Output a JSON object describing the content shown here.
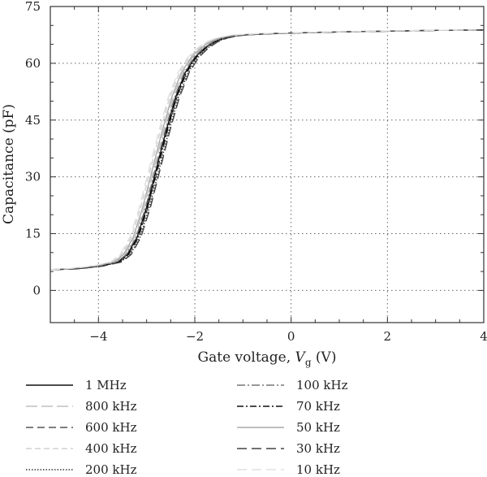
{
  "chart_data": {
    "type": "line",
    "xlabel_prefix": "Gate voltage, ",
    "xlabel_var": "V",
    "xlabel_sub": "g",
    "xlabel_suffix": " (V)",
    "ylabel": "Capacitance (pF)",
    "xlim": [
      -5,
      4
    ],
    "ylim": [
      -8.5,
      75
    ],
    "xticks": [
      -4,
      -2,
      0,
      2,
      4
    ],
    "xtick_labels": [
      "−4",
      "−2",
      "0",
      "2",
      "4"
    ],
    "yticks": [
      0,
      15,
      30,
      45,
      60,
      75
    ],
    "ytick_labels": [
      "0",
      "15",
      "30",
      "45",
      "60",
      "75"
    ],
    "grid": true,
    "legend_position": "bottom, two columns",
    "series": [
      {
        "name": "1 MHz",
        "color": "#111111",
        "dash": "",
        "shift": 0.0
      },
      {
        "name": "800 kHz",
        "color": "#c0c0c0",
        "dash": "14,5",
        "shift": -0.05
      },
      {
        "name": "600 kHz",
        "color": "#555555",
        "dash": "9,5",
        "shift": 0.03
      },
      {
        "name": "400 kHz",
        "color": "#d0d0d0",
        "dash": "7,4",
        "shift": -0.12
      },
      {
        "name": "200 kHz",
        "color": "#333333",
        "dash": "1.5,2",
        "shift": 0.06
      },
      {
        "name": "100 kHz",
        "color": "#777777",
        "dash": "10,3,2,3",
        "shift": -0.02
      },
      {
        "name": "70 kHz",
        "color": "#111111",
        "dash": "8,3,2,3",
        "shift": 0.02
      },
      {
        "name": "50 kHz",
        "color": "#aaaaaa",
        "dash": "",
        "shift": -0.08
      },
      {
        "name": "30 kHz",
        "color": "#444444",
        "dash": "12,6",
        "shift": 0.08
      },
      {
        "name": "10 kHz",
        "color": "#e0e0e0",
        "dash": "12,6",
        "shift": -0.15
      }
    ],
    "x": [
      -5.0,
      -4.5,
      -4.0,
      -3.6,
      -3.4,
      -3.2,
      -3.0,
      -2.8,
      -2.6,
      -2.4,
      -2.2,
      -2.0,
      -1.8,
      -1.6,
      -1.4,
      -1.2,
      -1.0,
      -0.5,
      0.0,
      1.0,
      2.0,
      3.0,
      4.0
    ],
    "y": [
      5.5,
      5.7,
      6.4,
      7.5,
      9.5,
      14.0,
      22.0,
      32.0,
      42.0,
      51.0,
      57.5,
      61.5,
      64.0,
      65.7,
      66.7,
      67.2,
      67.5,
      67.8,
      68.0,
      68.3,
      68.5,
      68.7,
      68.8
    ]
  }
}
